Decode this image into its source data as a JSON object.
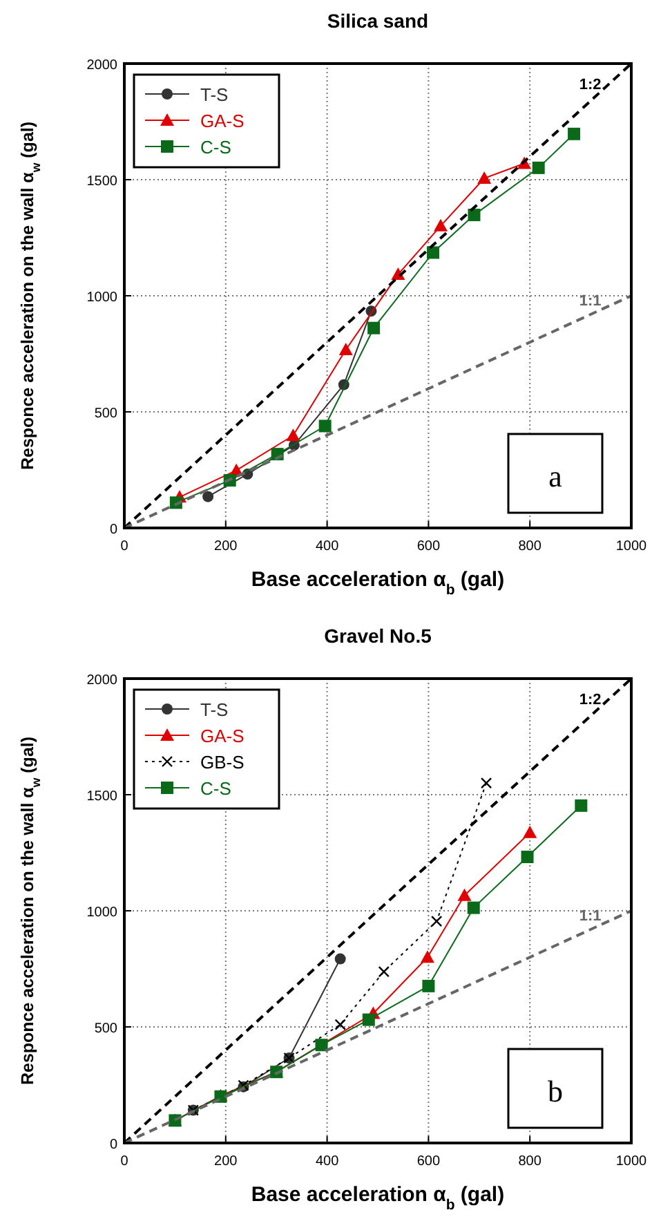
{
  "chart_data": [
    {
      "type": "line",
      "title": "Silica sand",
      "xlabel": "Base acceleration α$_{b}$ (gal)",
      "ylabel": "Responce acceleration on the wall α$_{w}$ (gal)",
      "xlim": [
        0,
        1000
      ],
      "ylim": [
        0,
        2000
      ],
      "xticks": [
        0,
        200,
        400,
        600,
        800,
        1000
      ],
      "yticks": [
        0,
        500,
        1000,
        1500,
        2000
      ],
      "grid": true,
      "legend": "top left",
      "annotations": [
        "a"
      ],
      "series": [
        {
          "name": "T-S",
          "color": "#333333",
          "marker": "circle",
          "x": [
            165,
            243,
            335,
            433,
            487
          ],
          "values": [
            135,
            232,
            357,
            617,
            934
          ]
        },
        {
          "name": "GA-S",
          "color": "#e00000",
          "marker": "triangle",
          "x": [
            109,
            221,
            333,
            437,
            540,
            624,
            710,
            789
          ],
          "values": [
            133,
            248,
            398,
            768,
            1092,
            1301,
            1506,
            1570
          ]
        },
        {
          "name": "C-S",
          "color": "#0a6a1a",
          "marker": "square",
          "x": [
            102,
            208,
            302,
            396,
            492,
            609,
            690,
            817,
            887
          ],
          "values": [
            109,
            205,
            318,
            439,
            861,
            1186,
            1348,
            1551,
            1697
          ]
        },
        {
          "name": "1:2",
          "color": "#000000",
          "marker": "none",
          "line_style": "dashed",
          "x": [
            0,
            1000
          ],
          "values": [
            0,
            2000
          ]
        },
        {
          "name": "1:1",
          "color": "#666666",
          "marker": "none",
          "line_style": "dashed",
          "x": [
            0,
            1000
          ],
          "values": [
            0,
            1000
          ]
        }
      ]
    },
    {
      "type": "line",
      "title": "Gravel No.5",
      "xlabel": "Base acceleration α$_{b}$ (gal)",
      "ylabel": "Responce acceleration on the wall α$_{w}$ (gal)",
      "xlim": [
        0,
        1000
      ],
      "ylim": [
        0,
        2000
      ],
      "xticks": [
        0,
        200,
        400,
        600,
        800,
        1000
      ],
      "yticks": [
        0,
        500,
        1000,
        1500,
        2000
      ],
      "grid": true,
      "legend": "top left",
      "annotations": [
        "b"
      ],
      "series": [
        {
          "name": "T-S",
          "color": "#333333",
          "marker": "circle",
          "x": [
            136,
            235,
            325,
            426
          ],
          "values": [
            141,
            242,
            366,
            793
          ]
        },
        {
          "name": "GA-S",
          "color": "#e00000",
          "marker": "triangle",
          "x": [
            100,
            190,
            300,
            491,
            598,
            671,
            800
          ],
          "values": [
            97,
            203,
            306,
            558,
            800,
            1066,
            1337
          ]
        },
        {
          "name": "GB-S",
          "color": "#000000",
          "marker": "cross",
          "line_style": "dotted",
          "x": [
            136,
            235,
            325,
            426,
            512,
            616,
            714
          ],
          "values": [
            141,
            248,
            366,
            510,
            738,
            955,
            1550
          ]
        },
        {
          "name": "C-S",
          "color": "#0a6a1a",
          "marker": "square",
          "x": [
            100,
            190,
            300,
            389,
            482,
            600,
            689,
            795,
            901
          ],
          "values": [
            97,
            200,
            306,
            422,
            531,
            676,
            1013,
            1232,
            1453
          ]
        },
        {
          "name": "1:2",
          "color": "#000000",
          "marker": "none",
          "line_style": "dashed",
          "x": [
            0,
            1000
          ],
          "values": [
            0,
            2000
          ]
        },
        {
          "name": "1:1",
          "color": "#666666",
          "marker": "none",
          "line_style": "dashed",
          "x": [
            0,
            1000
          ],
          "values": [
            0,
            1000
          ]
        }
      ]
    }
  ]
}
